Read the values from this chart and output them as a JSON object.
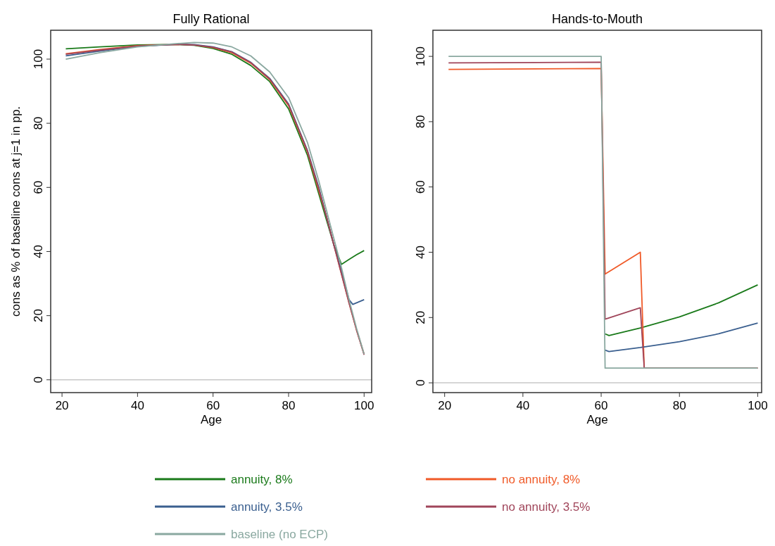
{
  "chart_data": [
    {
      "type": "line",
      "title": "Fully Rational",
      "xlabel": "Age",
      "ylabel": "cons as % of baseline cons at j=1 in pp.",
      "xlim": [
        17,
        102
      ],
      "ylim": [
        -4,
        109
      ],
      "xticks": [
        20,
        40,
        60,
        80,
        100
      ],
      "yticks": [
        0,
        20,
        40,
        60,
        80,
        100
      ],
      "grid": false,
      "legend": "bottom",
      "ref_lines": [
        {
          "axis": "y",
          "value": 0,
          "color": "#c8c8c8"
        }
      ],
      "series": [
        {
          "name": "annuity, 8%",
          "color": "#1a7a1a",
          "x": [
            21,
            30,
            40,
            50,
            55,
            60,
            65,
            70,
            75,
            80,
            85,
            88,
            90,
            92,
            94,
            96,
            98,
            100
          ],
          "values": [
            103.2,
            103.8,
            104.4,
            104.6,
            104.3,
            103.3,
            101.5,
            98,
            93,
            84.5,
            70,
            58,
            50,
            42,
            36,
            37.5,
            39,
            40.3
          ]
        },
        {
          "name": "no annuity, 8%",
          "color": "#f05a28",
          "x": [
            21,
            30,
            40,
            50,
            55,
            60,
            65,
            70,
            75,
            80,
            85,
            88,
            90,
            92,
            94,
            96,
            98,
            100
          ],
          "values": [
            101.7,
            103,
            104.2,
            104.6,
            104.4,
            103.6,
            102,
            98.7,
            93.6,
            85.5,
            71,
            59,
            51,
            42,
            33,
            24,
            15.5,
            8
          ]
        },
        {
          "name": "annuity, 3.5%",
          "color": "#3a5f8f",
          "x": [
            21,
            30,
            40,
            50,
            55,
            60,
            65,
            70,
            75,
            80,
            85,
            88,
            90,
            92,
            94,
            96,
            97,
            98,
            100
          ],
          "values": [
            101,
            102.5,
            104,
            104.6,
            104.5,
            103.8,
            102.3,
            99,
            94,
            86,
            71.5,
            60,
            51,
            42,
            34,
            25,
            23.5,
            24,
            25
          ]
        },
        {
          "name": "no annuity, 3.5%",
          "color": "#a0455a",
          "x": [
            21,
            30,
            40,
            50,
            55,
            60,
            65,
            70,
            75,
            80,
            85,
            88,
            90,
            92,
            94,
            96,
            98,
            100
          ],
          "values": [
            101.5,
            102.8,
            104.1,
            104.6,
            104.4,
            103.7,
            102.2,
            98.9,
            93.8,
            85.8,
            71.3,
            59.5,
            51,
            42,
            33,
            24,
            15.5,
            7.8
          ]
        },
        {
          "name": "baseline (no ECP)",
          "color": "#8aa8a0",
          "x": [
            21,
            30,
            40,
            50,
            55,
            60,
            65,
            70,
            75,
            80,
            85,
            88,
            90,
            92,
            94,
            96,
            98,
            100
          ],
          "values": [
            100,
            102,
            103.8,
            104.8,
            105.2,
            105,
            103.8,
            101,
            96,
            88,
            74,
            62,
            53,
            44,
            35,
            25,
            16,
            8
          ]
        }
      ]
    },
    {
      "type": "line",
      "title": "Hands-to-Mouth",
      "xlabel": "Age",
      "xlim": [
        17,
        101
      ],
      "ylim": [
        -3,
        108
      ],
      "xticks": [
        20,
        40,
        60,
        80,
        100
      ],
      "yticks": [
        0,
        20,
        40,
        60,
        80,
        100
      ],
      "grid": false,
      "ref_lines": [
        {
          "axis": "y",
          "value": 0,
          "color": "#c8c8c8"
        }
      ],
      "series": [
        {
          "color": "#1a7a1a",
          "x": [
            61,
            62,
            70,
            80,
            90,
            100
          ],
          "values": [
            15,
            14.5,
            16.8,
            20.2,
            24.5,
            30
          ]
        },
        {
          "color": "#f05a28",
          "x": [
            21,
            60,
            61,
            70,
            71,
            100
          ],
          "values": [
            96,
            96.3,
            33.3,
            40,
            4.5,
            4.5
          ]
        },
        {
          "color": "#3a5f8f",
          "x": [
            61,
            62,
            70,
            80,
            90,
            100
          ],
          "values": [
            10,
            9.6,
            10.8,
            12.6,
            15,
            18.3
          ]
        },
        {
          "color": "#a0455a",
          "x": [
            21,
            60,
            61,
            70,
            71,
            100
          ],
          "values": [
            98,
            98.2,
            19.5,
            23,
            4.5,
            4.5
          ]
        },
        {
          "color": "#8aa8a0",
          "x": [
            21,
            60,
            61,
            100
          ],
          "values": [
            100,
            100,
            4.5,
            4.5
          ]
        }
      ]
    }
  ]
}
